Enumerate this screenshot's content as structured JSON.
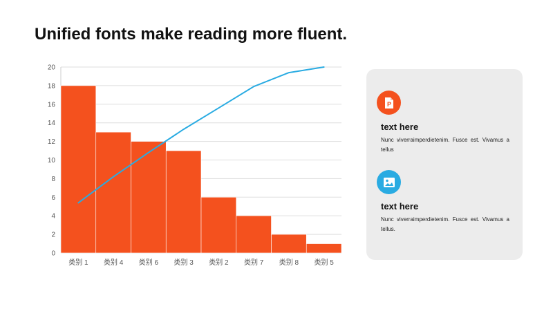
{
  "title": "Unified fonts make reading more fluent.",
  "chart_data": {
    "type": "bar",
    "categories": [
      "类别 1",
      "类别 4",
      "类别 6",
      "类别 3",
      "类别 2",
      "类别 7",
      "类别 8",
      "类别 5"
    ],
    "series": [
      {
        "type": "bar",
        "values": [
          18,
          13,
          12,
          11,
          6,
          4,
          2,
          1
        ],
        "color": "#f4511e"
      },
      {
        "type": "line",
        "values": [
          5.4,
          8.2,
          10.8,
          13.3,
          15.6,
          17.9,
          19.4,
          20.0
        ],
        "color": "#29abe2"
      }
    ],
    "yticks": [
      0,
      2,
      4,
      6,
      8,
      10,
      12,
      14,
      16,
      18,
      20
    ],
    "ylim": [
      0,
      20
    ],
    "grid": true
  },
  "panel": {
    "items": [
      {
        "icon": "powerpoint-file-icon",
        "icon_color": "#f4511e",
        "heading": "text here",
        "body": "Nunc viverraimperdietenim. Fusce est. Vivamus a tellus"
      },
      {
        "icon": "image-icon",
        "icon_color": "#29abe2",
        "heading": "text here",
        "body": "Nunc viverraimperdietenim. Fusce est. Vivamus a tellus."
      }
    ]
  }
}
